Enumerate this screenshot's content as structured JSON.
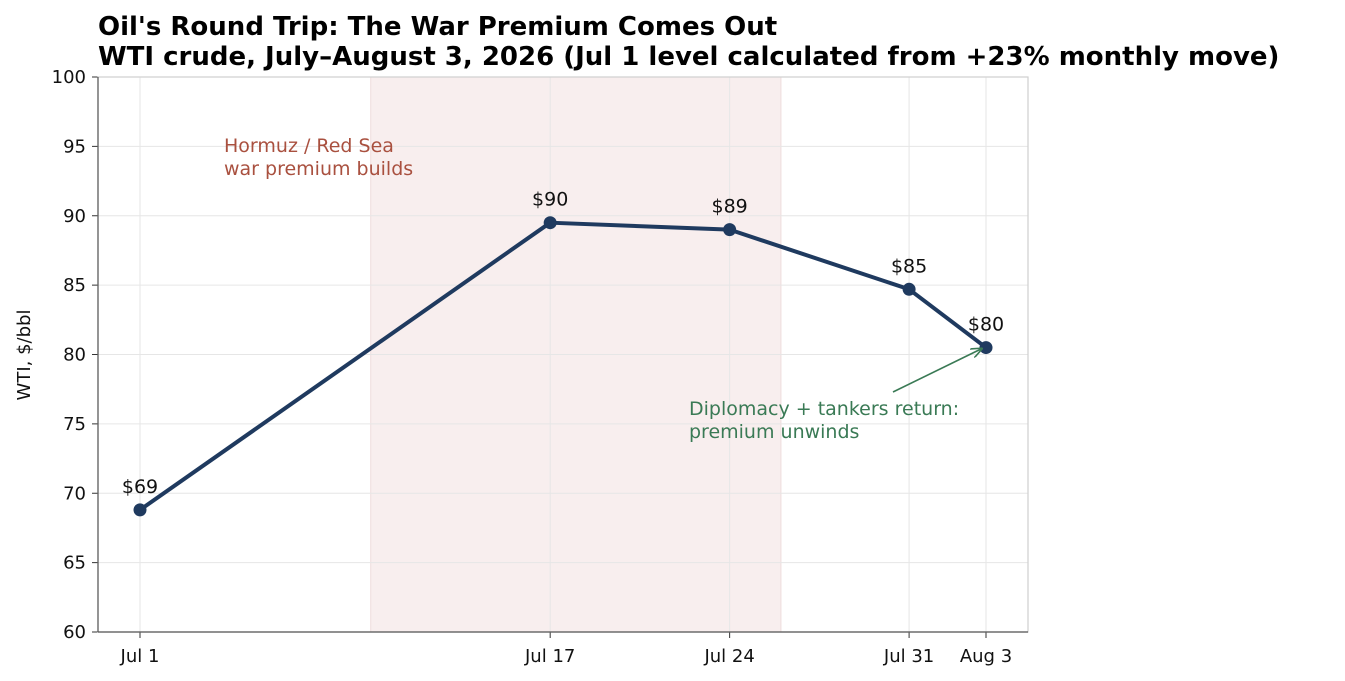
{
  "chart_data": {
    "type": "line",
    "title": "Oil's Round Trip: The War Premium Comes Out",
    "subtitle": "WTI crude, July–August 3, 2026 (Jul 1 level calculated from +23% monthly move)",
    "xlabel": "",
    "ylabel": "WTI, $/bbl",
    "ylim": [
      60,
      100
    ],
    "yticks": [
      60,
      65,
      70,
      75,
      80,
      85,
      90,
      95,
      100
    ],
    "categories": [
      "Jul 1",
      "Jul 17",
      "Jul 24",
      "Jul 31",
      "Aug 3"
    ],
    "series": [
      {
        "values": [
          68.8,
          89.5,
          89.0,
          84.7,
          80.5
        ],
        "labels": [
          "$69",
          "$90",
          "$89",
          "$85",
          "$80"
        ],
        "color": "#1f3a5f"
      }
    ],
    "grid": true,
    "shaded_region": {
      "x_range": [
        "Jul 10",
        "Jul 26"
      ],
      "color": "#f8eeee",
      "label_lines": [
        "Hormuz / Red Sea",
        "war premium builds"
      ],
      "label_color": "#a9503f"
    },
    "annotation": {
      "text_lines": [
        "Diplomacy + tankers return:",
        "premium unwinds"
      ],
      "points_to": "Aug 3",
      "color": "#3a7a55"
    }
  }
}
